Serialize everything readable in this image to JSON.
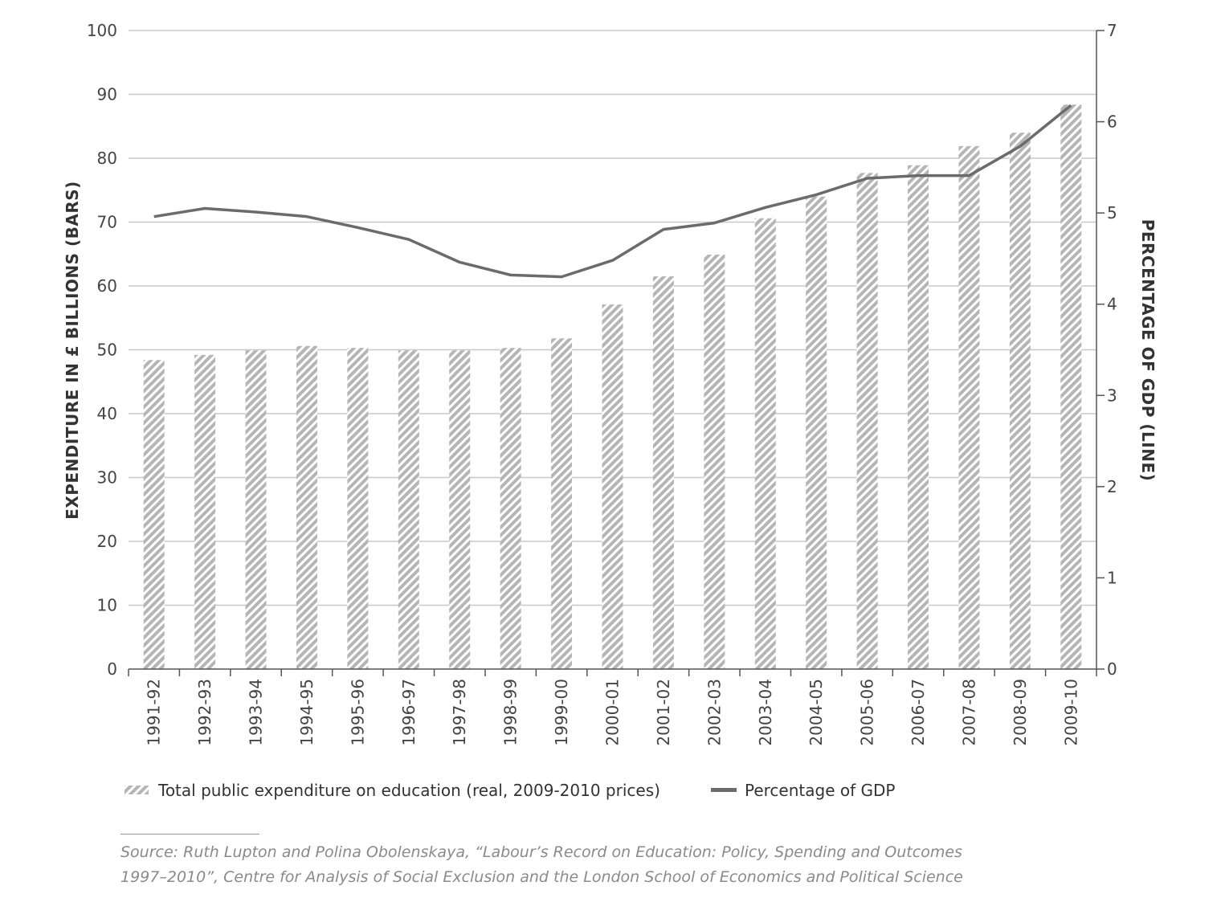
{
  "chart_data": {
    "type": "bar+line",
    "categories": [
      "1991-92",
      "1992-93",
      "1993-94",
      "1994-95",
      "1995-96",
      "1996-97",
      "1997-98",
      "1998-99",
      "1999-00",
      "2000-01",
      "2001-02",
      "2002-03",
      "2003-04",
      "2004-05",
      "2005-06",
      "2006-07",
      "2007-08",
      "2008-09",
      "2009-10"
    ],
    "series": [
      {
        "name": "Total public expenditure on education (real, 2009-2010 prices)",
        "type": "bar",
        "axis": "left",
        "values": [
          48.4,
          49.2,
          49.9,
          50.6,
          50.3,
          49.9,
          49.9,
          50.3,
          51.8,
          57.1,
          61.5,
          64.9,
          70.6,
          74.0,
          77.7,
          78.9,
          81.9,
          84.0,
          88.4
        ]
      },
      {
        "name": "Percentage of GDP",
        "type": "line",
        "axis": "right",
        "values": [
          4.96,
          5.05,
          5.01,
          4.96,
          4.84,
          4.71,
          4.46,
          4.32,
          4.3,
          4.48,
          4.82,
          4.89,
          5.06,
          5.2,
          5.38,
          5.41,
          5.41,
          5.73,
          6.18
        ]
      }
    ],
    "ylabel": "EXPENDITURE IN £ BILLIONS (BARS)",
    "y2label": "PERCENTAGE OF GDP (LINE)",
    "ylim": [
      0,
      100
    ],
    "y2lim": [
      0,
      7
    ],
    "yticks": [
      "0",
      "10",
      "20",
      "30",
      "40",
      "50",
      "60",
      "70",
      "80",
      "90",
      "100"
    ],
    "y2ticks": [
      "0",
      "1",
      "2",
      "3",
      "4",
      "5",
      "6",
      "7"
    ],
    "grid": true,
    "legend": "bottom",
    "colors": {
      "bar_hatch": "#b5b5b5",
      "line": "#6b6b6b",
      "grid": "#c8c8c8",
      "axis": "#555555"
    }
  },
  "source": {
    "line1": "Source: Ruth Lupton and Polina Obolenskaya, “Labour’s Record on Education: Policy, Spending and Outcomes",
    "line2": "1997–2010”, Centre for Analysis of Social Exclusion and the London School of Economics and Political Science"
  }
}
